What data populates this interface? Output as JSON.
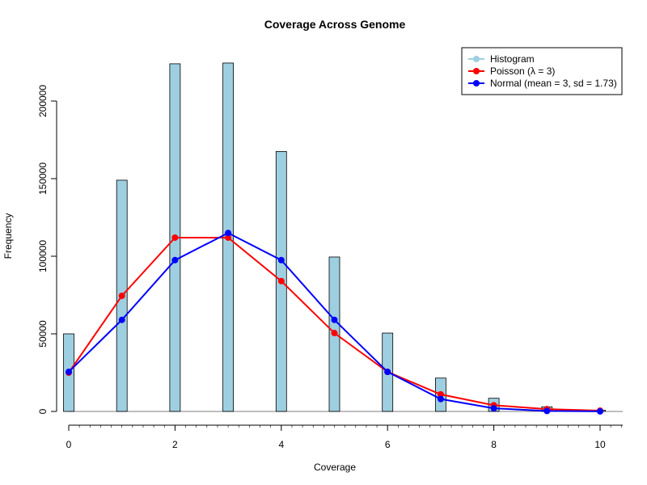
{
  "chart_data": {
    "type": "bar",
    "title": "Coverage Across Genome",
    "xlabel": "Coverage",
    "ylabel": "Frequency",
    "xlim": [
      0,
      10.4
    ],
    "ylim": [
      0,
      225000
    ],
    "x_ticks": [
      "0",
      "2",
      "4",
      "6",
      "8",
      "10"
    ],
    "y_ticks": [
      "0",
      "50000",
      "100000",
      "150000",
      "200000"
    ],
    "histogram": {
      "name": "Histogram",
      "color": "#9ecfe0",
      "x": [
        0,
        1,
        2,
        3,
        4,
        5,
        6,
        7,
        8,
        9,
        10
      ],
      "values": [
        50000,
        149000,
        224000,
        224500,
        167500,
        99500,
        50500,
        21500,
        8500,
        3000,
        800
      ]
    },
    "series": [
      {
        "name": "Poisson (λ = 3)",
        "color": "#ff0000",
        "type": "line",
        "x": [
          0,
          1,
          2,
          3,
          4,
          5,
          6,
          7,
          8,
          9,
          10
        ],
        "values": [
          25000,
          74500,
          112000,
          112000,
          84000,
          50500,
          25500,
          11000,
          4000,
          1500,
          500
        ]
      },
      {
        "name": "Normal (mean = 3, sd = 1.73)",
        "color": "#0000ff",
        "type": "line",
        "x": [
          0,
          1,
          2,
          3,
          4,
          5,
          6,
          7,
          8,
          9,
          10
        ],
        "values": [
          25500,
          59000,
          97500,
          115000,
          97500,
          59000,
          25500,
          8000,
          2000,
          300,
          50
        ]
      }
    ],
    "legend": {
      "position": "top-right",
      "items": [
        "Histogram",
        "Poisson (λ = 3)",
        "Normal (mean = 3, sd = 1.73)"
      ]
    }
  }
}
